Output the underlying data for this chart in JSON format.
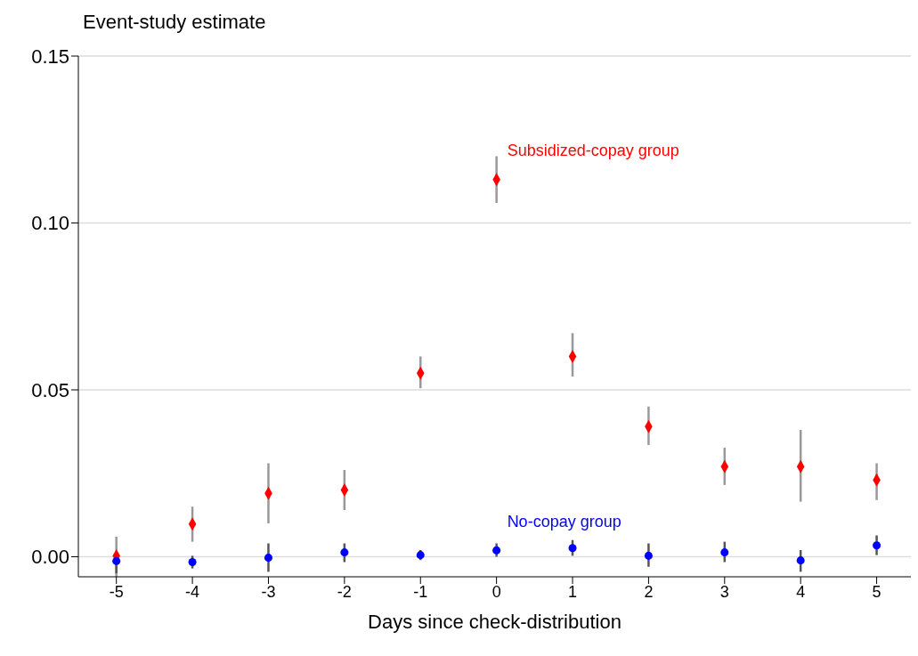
{
  "chart_data": {
    "type": "scatter",
    "ylabel": "Event-study estimate",
    "xlabel": "Days since check-distribution",
    "x": [
      -5,
      -4,
      -3,
      -2,
      -1,
      0,
      1,
      2,
      3,
      4,
      5
    ],
    "series": [
      {
        "name": "Subsidized-copay group",
        "color": "#ff0000",
        "marker": "diamond",
        "values": [
          0.0003,
          0.0098,
          0.019,
          0.02,
          0.055,
          0.113,
          0.06,
          0.039,
          0.027,
          0.027,
          0.023
        ],
        "errors": [
          [
            -0.006,
            0.006
          ],
          [
            0.0045,
            0.015
          ],
          [
            0.01,
            0.028
          ],
          [
            0.014,
            0.026
          ],
          [
            0.0505,
            0.06
          ],
          [
            0.106,
            0.12
          ],
          [
            0.054,
            0.067
          ],
          [
            0.0335,
            0.045
          ],
          [
            0.0215,
            0.0327
          ],
          [
            0.0165,
            0.038
          ],
          [
            0.017,
            0.028
          ]
        ]
      },
      {
        "name": "No-copay group",
        "color": "#0000ff",
        "marker": "circle",
        "values": [
          -0.0013,
          -0.0016,
          -0.0003,
          0.0013,
          0.0005,
          0.0019,
          0.0026,
          0.0003,
          0.0013,
          -0.0011,
          0.0034
        ],
        "errors": [
          [
            -0.005,
            0.001
          ],
          [
            -0.0035,
            0.0003
          ],
          [
            -0.0045,
            0.004
          ],
          [
            -0.0016,
            0.004
          ],
          [
            -0.001,
            0.002
          ],
          [
            0.0,
            0.004
          ],
          [
            0.0003,
            0.005
          ],
          [
            -0.003,
            0.004
          ],
          [
            -0.0016,
            0.0045
          ],
          [
            -0.0045,
            0.002
          ],
          [
            0.0005,
            0.0064
          ]
        ]
      }
    ],
    "xlim": [
      -5.5,
      5.45
    ],
    "xticks": [
      -5,
      -4,
      -3,
      -2,
      -1,
      0,
      1,
      2,
      3,
      4,
      5
    ],
    "ylim": [
      -0.006,
      0.15
    ],
    "yticks": [
      {
        "value": 0,
        "label": "0.00"
      },
      {
        "value": 0.05,
        "label": "0.05"
      },
      {
        "value": 0.1,
        "label": "0.10"
      },
      {
        "value": 0.15,
        "label": "0.15"
      }
    ],
    "grid": "y"
  }
}
